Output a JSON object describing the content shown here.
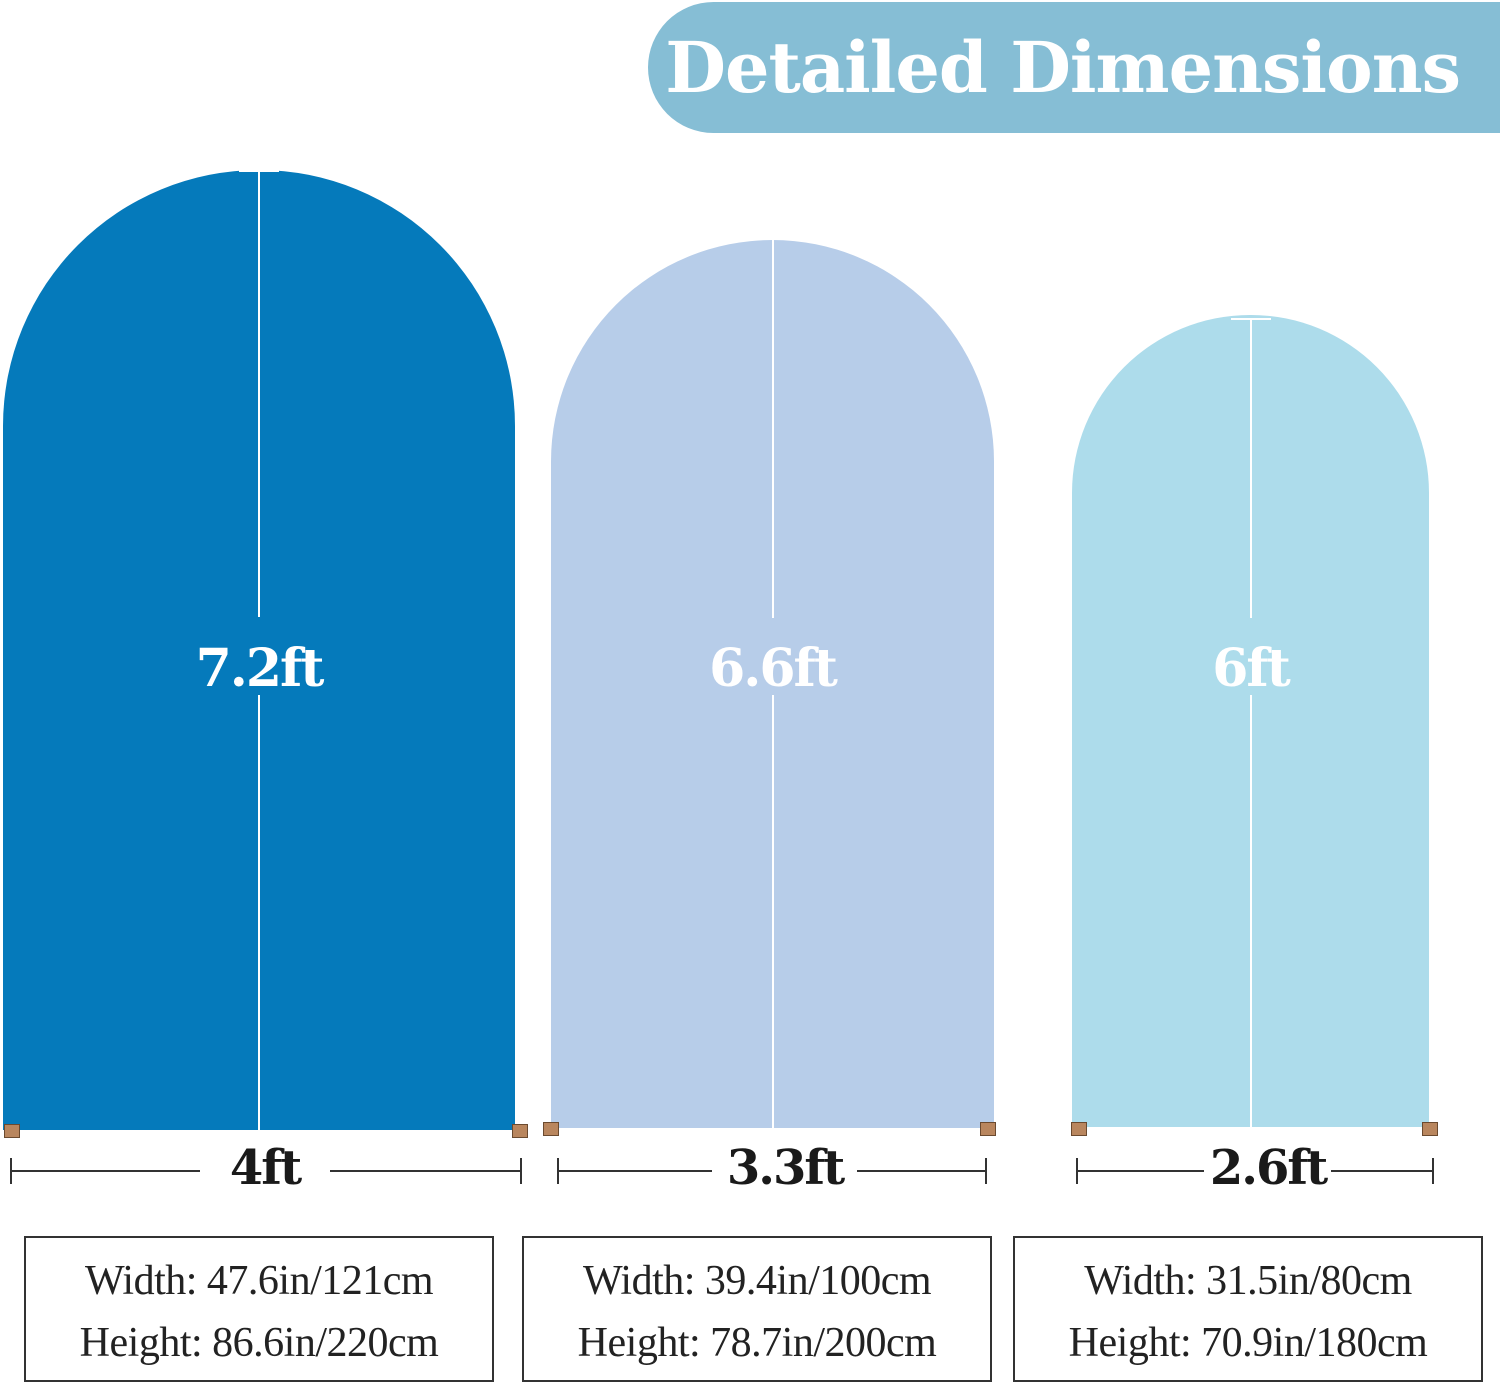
{
  "header": {
    "title": "Detailed Dimensions",
    "background_color": "#86bed5",
    "text_color": "#ffffff"
  },
  "arches": [
    {
      "height_label": "7.2ft",
      "width_label": "4ft",
      "color": "#057abb",
      "spec_width": "Width: 47.6in/121cm",
      "spec_height": "Height: 86.6in/220cm"
    },
    {
      "height_label": "6.6ft",
      "width_label": "3.3ft",
      "color": "#b7cde9",
      "spec_width": "Width: 39.4in/100cm",
      "spec_height": "Height: 78.7in/200cm"
    },
    {
      "height_label": "6ft",
      "width_label": "2.6ft",
      "color": "#addceb",
      "spec_width": "Width: 31.5in/80cm",
      "spec_height": "Height: 70.9in/180cm"
    }
  ]
}
